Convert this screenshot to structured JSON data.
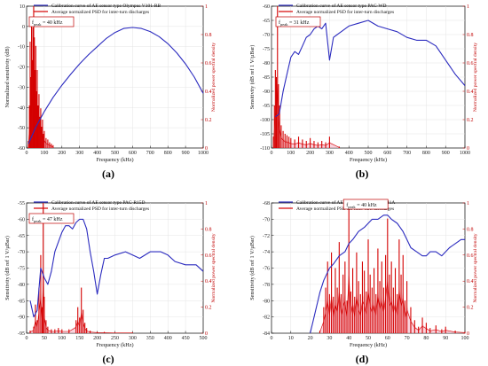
{
  "chart_data": [
    {
      "type": "line",
      "panel_label": "(a)",
      "legend": [
        {
          "label": "Calibration curve of AE sensor type Olympus V101-RB",
          "color": "#2b2bbf"
        },
        {
          "label": "Average normalized PSD for inter-turn discharges",
          "color": "#d40000"
        }
      ],
      "peak_label": "f_peak = 40 kHz",
      "peak_label_main": "f",
      "peak_label_sub": "peak",
      "peak_label_rest": " = 40 kHz",
      "xlabel": "Frequency (kHz)",
      "ylabel": "Normalized sensitivity (dB)",
      "y2label": "Normalized power spectral density",
      "xlim": [
        0,
        1000
      ],
      "ylim": [
        -60,
        10
      ],
      "y2lim": [
        0,
        1
      ],
      "xticks": [
        0,
        100,
        200,
        300,
        400,
        500,
        600,
        700,
        800,
        900,
        1000
      ],
      "yticks": [
        -60,
        -50,
        -40,
        -30,
        -20,
        -10,
        0,
        10
      ],
      "y2ticks": [
        0,
        0.2,
        0.4,
        0.6,
        0.8,
        1
      ],
      "calibration": {
        "x": [
          10,
          50,
          100,
          150,
          200,
          250,
          300,
          350,
          400,
          450,
          500,
          550,
          600,
          650,
          700,
          750,
          800,
          850,
          900,
          950,
          1000
        ],
        "y": [
          -58,
          -50,
          -42,
          -35,
          -29,
          -23.5,
          -18.5,
          -14,
          -10,
          -6,
          -3,
          -1,
          -0.5,
          -1,
          -2.5,
          -5,
          -8.5,
          -13,
          -18.5,
          -25,
          -33
        ]
      },
      "psd": {
        "x": [
          10,
          16,
          20,
          24,
          28,
          32,
          36,
          40,
          44,
          48,
          52,
          56,
          60,
          65,
          70,
          75,
          80,
          85,
          90,
          95,
          100,
          110,
          120,
          130,
          140,
          150
        ],
        "y": [
          0.05,
          0.3,
          0.75,
          0.5,
          0.9,
          0.62,
          0.85,
          1.0,
          0.78,
          0.55,
          0.72,
          0.4,
          0.55,
          0.3,
          0.38,
          0.22,
          0.28,
          0.15,
          0.2,
          0.1,
          0.12,
          0.07,
          0.06,
          0.04,
          0.03,
          0.02
        ]
      }
    },
    {
      "type": "line",
      "panel_label": "(b)",
      "legend": [
        {
          "label": "Calibration curve of AE sensor type PAC-WD",
          "color": "#2b2bbf"
        },
        {
          "label": "Average normalized PSD for inter-turn discharges",
          "color": "#d40000"
        }
      ],
      "peak_label": "f_peak = 31 kHz",
      "peak_label_main": "f",
      "peak_label_sub": "peak",
      "peak_label_rest": " = 31 kHz",
      "xlabel": "Frequency (kHz)",
      "ylabel": "Sensitivity (dB ref 1 V/µBar)",
      "y2label": "Normalized power spectral density",
      "xlim": [
        0,
        1000
      ],
      "ylim": [
        -110,
        -60
      ],
      "y2lim": [
        0,
        1
      ],
      "xticks": [
        0,
        100,
        200,
        300,
        400,
        500,
        600,
        700,
        800,
        900,
        1000
      ],
      "yticks": [
        -110,
        -105,
        -100,
        -95,
        -90,
        -85,
        -80,
        -75,
        -70,
        -65,
        -60
      ],
      "y2ticks": [
        0,
        0.2,
        0.4,
        0.6,
        0.8,
        1
      ],
      "calibration": {
        "x": [
          20,
          40,
          60,
          80,
          100,
          120,
          140,
          160,
          180,
          200,
          220,
          240,
          260,
          280,
          300,
          320,
          340,
          360,
          400,
          450,
          500,
          550,
          600,
          650,
          700,
          750,
          800,
          850,
          900,
          950,
          1000
        ],
        "y": [
          -99,
          -98,
          -90,
          -84,
          -78,
          -76,
          -77,
          -74,
          -71,
          -70,
          -68,
          -67,
          -68,
          -66,
          -79,
          -71,
          -70,
          -69,
          -67,
          -66,
          -65,
          -67,
          -68,
          -69,
          -71,
          -72,
          -72,
          -74,
          -79,
          -84,
          -88
        ]
      },
      "psd": {
        "x": [
          10,
          15,
          20,
          25,
          31,
          36,
          42,
          50,
          60,
          70,
          80,
          90,
          100,
          120,
          140,
          160,
          180,
          200,
          220,
          240,
          260,
          280,
          300,
          350
        ],
        "y": [
          0.08,
          0.3,
          0.55,
          0.5,
          1.0,
          0.45,
          0.3,
          0.16,
          0.12,
          0.1,
          0.09,
          0.08,
          0.07,
          0.06,
          0.08,
          0.06,
          0.05,
          0.07,
          0.05,
          0.04,
          0.05,
          0.04,
          0.08,
          0.01
        ]
      }
    },
    {
      "type": "line",
      "panel_label": "(c)",
      "legend": [
        {
          "label": "Calibration curve of AE sensor type PAC-R15D",
          "color": "#2b2bbf"
        },
        {
          "label": "Average normalized PSD for inter-turn discharges",
          "color": "#d40000"
        }
      ],
      "peak_label": "f_peak = 47 kHz",
      "peak_label_main": "f",
      "peak_label_sub": "peak",
      "peak_label_rest": " = 47 kHz",
      "xlabel": "Frequency (kHz)",
      "ylabel": "Sensitivity (dB ref 1 V/µBar)",
      "y2label": "Normalized power spectral density",
      "xlim": [
        0,
        500
      ],
      "ylim": [
        -95,
        -55
      ],
      "y2lim": [
        0,
        1
      ],
      "xticks": [
        0,
        50,
        100,
        150,
        200,
        250,
        300,
        350,
        400,
        450,
        500
      ],
      "yticks": [
        -95,
        -90,
        -85,
        -80,
        -75,
        -70,
        -65,
        -60,
        -55
      ],
      "y2ticks": [
        0,
        0.2,
        0.4,
        0.6,
        0.8,
        1
      ],
      "calibration": {
        "x": [
          10,
          20,
          30,
          40,
          50,
          60,
          70,
          80,
          90,
          100,
          110,
          120,
          130,
          140,
          150,
          160,
          170,
          180,
          190,
          200,
          210,
          220,
          230,
          250,
          280,
          300,
          320,
          350,
          380,
          400,
          420,
          450,
          480,
          500
        ],
        "y": [
          -85,
          -90,
          -88,
          -75,
          -78,
          -80,
          -76,
          -70,
          -67,
          -64,
          -62,
          -62,
          -63,
          -61,
          -60,
          -60,
          -63,
          -70,
          -76,
          -83,
          -77,
          -72,
          -72,
          -71,
          -70,
          -71,
          -72,
          -70,
          -70,
          -71,
          -73,
          -74,
          -74,
          -76
        ]
      },
      "psd": {
        "x": [
          10,
          20,
          25,
          30,
          35,
          40,
          44,
          47,
          50,
          55,
          60,
          70,
          80,
          90,
          100,
          120,
          140,
          145,
          150,
          155,
          160,
          165,
          170,
          180,
          200,
          220,
          250,
          300
        ],
        "y": [
          0.02,
          0.05,
          0.22,
          0.1,
          0.35,
          0.6,
          0.2,
          1.0,
          0.28,
          0.1,
          0.05,
          0.03,
          0.03,
          0.04,
          0.03,
          0.03,
          0.1,
          0.2,
          0.12,
          0.35,
          0.18,
          0.08,
          0.04,
          0.02,
          0.01,
          0.01,
          0.005,
          0.005
        ]
      }
    },
    {
      "type": "line",
      "panel_label": "(d)",
      "legend": [
        {
          "label": "Calibration curve of AE sensor type PAC-D9241A",
          "color": "#2b2bbf"
        },
        {
          "label": "Average normalized PSD for inter-turn discharges",
          "color": "#d40000"
        }
      ],
      "peak_label": "f_peak = 40 kHz",
      "peak_label_main": "f",
      "peak_label_sub": "peak",
      "peak_label_rest": " = 40 kHz",
      "xlabel": "Frequency (kHz)",
      "ylabel": "Sensitivity (dB ref 1 V/µBar)",
      "y2label": "Normalized power spectral density",
      "xlim": [
        0,
        100
      ],
      "ylim": [
        -84,
        -68
      ],
      "y2lim": [
        0,
        1
      ],
      "xticks": [
        0,
        10,
        20,
        30,
        40,
        50,
        60,
        70,
        80,
        90,
        100
      ],
      "yticks": [
        -84,
        -82,
        -80,
        -78,
        -76,
        -74,
        -72,
        -70,
        -68
      ],
      "y2ticks": [
        0,
        0.2,
        0.4,
        0.6,
        0.8,
        1
      ],
      "calibration": {
        "x": [
          20,
          22,
          25,
          27,
          30,
          32,
          35,
          38,
          40,
          42,
          45,
          48,
          50,
          52,
          55,
          58,
          60,
          62,
          65,
          68,
          70,
          72,
          75,
          78,
          80,
          82,
          85,
          88,
          90,
          92,
          95,
          98,
          100
        ],
        "y": [
          -84,
          -82,
          -79,
          -77.5,
          -76,
          -75.5,
          -74.5,
          -74,
          -73,
          -72.5,
          -71.5,
          -71,
          -70.5,
          -70,
          -70,
          -69.5,
          -69.5,
          -70,
          -70.5,
          -71.5,
          -72.5,
          -73.5,
          -74,
          -74.5,
          -74.5,
          -74,
          -74,
          -74.5,
          -74,
          -73.5,
          -73,
          -72.5,
          -72.5
        ]
      },
      "psd": {
        "x": [
          25,
          27,
          28,
          29,
          30,
          31,
          32,
          33,
          34,
          35,
          36,
          37,
          38,
          39,
          40,
          41,
          42,
          43,
          44,
          45,
          46,
          47,
          48,
          49,
          50,
          51,
          52,
          53,
          54,
          55,
          56,
          57,
          58,
          59,
          60,
          61,
          62,
          63,
          64,
          65,
          66,
          67,
          68,
          69,
          70,
          72,
          74,
          76,
          78,
          80,
          82,
          85,
          88,
          90,
          95,
          100
        ],
        "y": [
          0.02,
          0.2,
          0.35,
          0.55,
          0.3,
          0.62,
          0.28,
          0.5,
          0.35,
          0.7,
          0.3,
          0.45,
          0.55,
          0.25,
          0.98,
          0.32,
          0.5,
          0.28,
          0.62,
          0.4,
          0.3,
          0.55,
          0.48,
          0.32,
          0.72,
          0.45,
          0.35,
          0.5,
          0.3,
          0.65,
          0.4,
          0.55,
          0.35,
          0.6,
          0.88,
          0.45,
          0.55,
          0.35,
          0.5,
          0.3,
          0.72,
          0.45,
          0.6,
          0.25,
          0.4,
          0.2,
          0.1,
          0.05,
          0.12,
          0.08,
          0.04,
          0.06,
          0.03,
          0.05,
          0.02,
          0.01
        ]
      }
    }
  ]
}
